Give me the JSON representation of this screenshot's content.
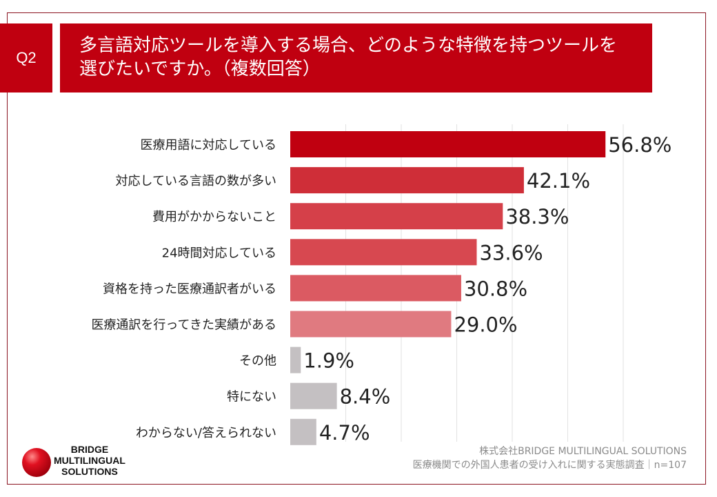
{
  "question": {
    "number": "Q2",
    "text_line1": "多言語対応ツールを導入する場合、どのような特徴を持つツールを",
    "text_line2": "選びたいですか。（複数回答）"
  },
  "chart_data": {
    "type": "bar",
    "orientation": "horizontal",
    "categories": [
      "医療用語に対応している",
      "対応している言語の数が多い",
      "費用がかからないこと",
      "24時間対応している",
      "資格を持った医療通訳者がいる",
      "医療通訳を行ってきた実績がある",
      "その他",
      "特にない",
      "わからない/答えられない"
    ],
    "values": [
      56.8,
      42.1,
      38.3,
      33.6,
      30.8,
      29.0,
      1.9,
      8.4,
      4.7
    ],
    "value_labels": [
      "56.8%",
      "42.1%",
      "38.3%",
      "33.6%",
      "30.8%",
      "29.0%",
      "1.9%",
      "8.4%",
      "4.7%"
    ],
    "colors": [
      "#c00010",
      "#cf2e38",
      "#d54049",
      "#d74850",
      "#db5a62",
      "#e07a80",
      "#c4c0c2",
      "#c4c0c2",
      "#c4c0c2"
    ],
    "xlim": [
      0,
      60
    ],
    "grid": true
  },
  "footer": {
    "line1": "株式会社BRIDGE MULTILINGUAL SOLUTIONS",
    "line2": "医療機関での外国人患者の受け入れに関する実態調査｜n=107"
  },
  "logo": {
    "line1": "BRIDGE",
    "line2": "MULTILINGUAL",
    "line3": "SOLUTIONS"
  }
}
